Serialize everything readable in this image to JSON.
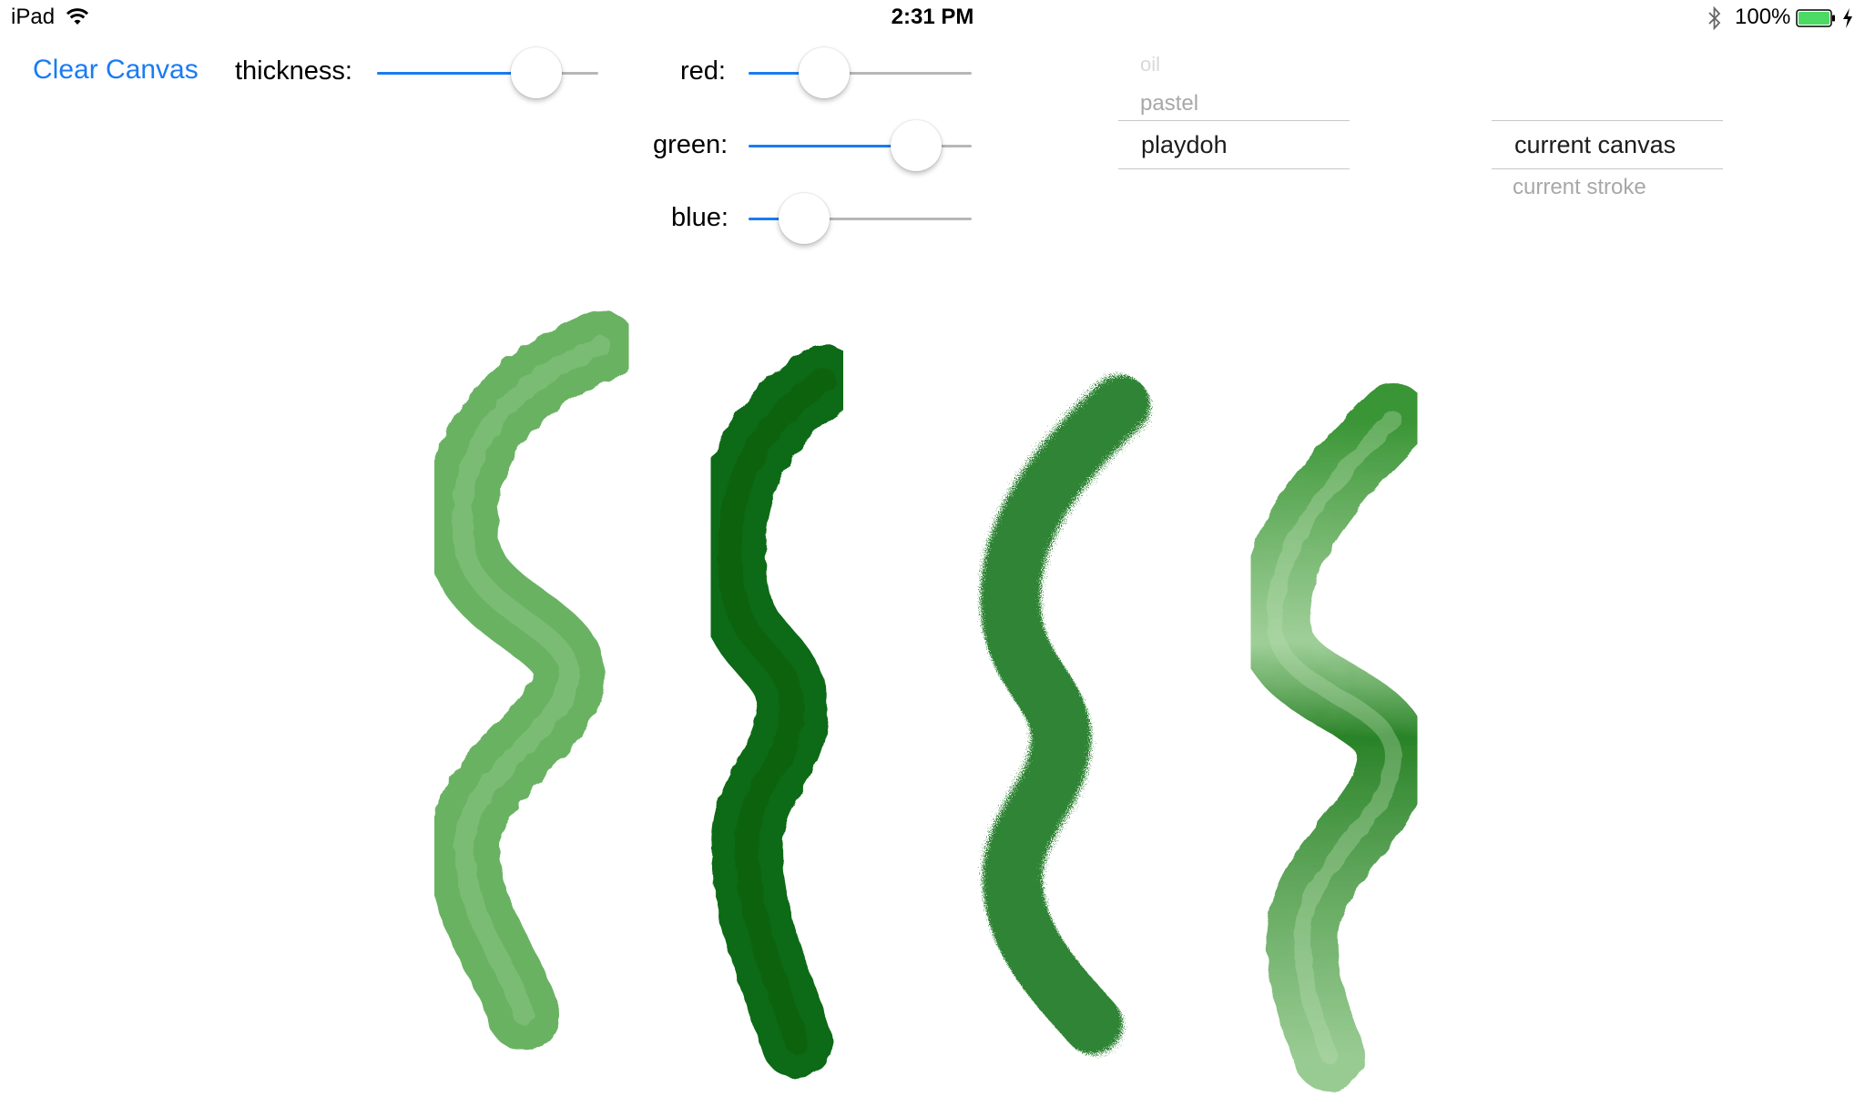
{
  "status_bar": {
    "device": "iPad",
    "time": "2:31 PM",
    "battery_percent": "100%",
    "wifi_icon": "wifi-icon",
    "bluetooth_icon": "bluetooth-icon",
    "battery_icon": "battery-icon",
    "charging_icon": "charging-bolt-icon"
  },
  "toolbar": {
    "clear_label": "Clear Canvas",
    "thickness_label": "thickness:",
    "thickness_value": 0.72,
    "red_label": "red:",
    "red_value": 0.34,
    "green_label": "green:",
    "green_value": 0.75,
    "blue_label": "blue:",
    "blue_value": 0.25
  },
  "brush_picker": {
    "items": [
      "oil",
      "pastel",
      "playdoh"
    ],
    "selected": "playdoh"
  },
  "scope_picker": {
    "items": [
      "current canvas",
      "current stroke"
    ],
    "selected": "current canvas"
  },
  "colors": {
    "accent": "#1a7cf2",
    "slider_track": "#b7b7b7",
    "picker_divider": "#c7c7c7",
    "stroke_light_green": "#5aaa52",
    "stroke_dark_green": "#116a14",
    "stroke_pastel_green": "#1f7a22",
    "stroke_watercolor_green": "#3e9a36"
  },
  "canvas": {
    "strokes": [
      {
        "name": "light-green-stroke",
        "brush": "oil",
        "color": "#5aaa52"
      },
      {
        "name": "dark-green-stroke",
        "brush": "oil",
        "color": "#116a14"
      },
      {
        "name": "pastel-green-stroke",
        "brush": "pastel",
        "color": "#1f7a22"
      },
      {
        "name": "watercolor-green-stroke",
        "brush": "playdoh",
        "color": "#3e9a36"
      }
    ]
  }
}
